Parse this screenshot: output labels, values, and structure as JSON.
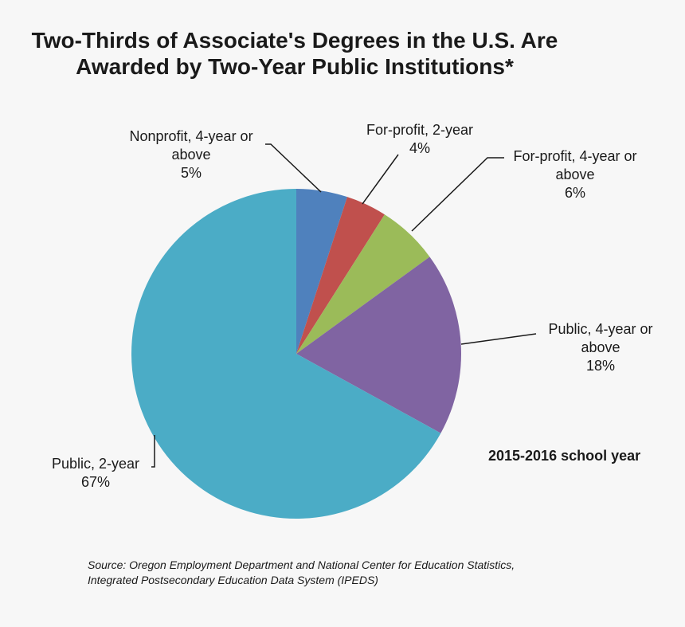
{
  "title_lines": [
    "Two-Thirds of Associate's Degrees in the U.S. Are",
    "Awarded by Two-Year Public Institutions*"
  ],
  "note": "2015-2016 school year",
  "source_lines": [
    "Source: Oregon Employment Department and National Center for Education Statistics,",
    "Integrated Postsecondary Education Data System (IPEDS)"
  ],
  "chart_data": {
    "type": "pie",
    "title": "Two-Thirds of Associate's Degrees in the U.S. Are Awarded by Two-Year Public Institutions*",
    "slices": [
      {
        "label": "Nonprofit, 4-year or above",
        "label_lines": [
          "Nonprofit, 4-year or",
          "above"
        ],
        "value": 5,
        "pct_label": "5%",
        "color": "#4f81bd"
      },
      {
        "label": "For-profit, 2-year",
        "label_lines": [
          "For-profit, 2-year"
        ],
        "value": 4,
        "pct_label": "4%",
        "color": "#c0504d"
      },
      {
        "label": "For-profit, 4-year or above",
        "label_lines": [
          "For-profit, 4-year or",
          "above"
        ],
        "value": 6,
        "pct_label": "6%",
        "color": "#9bbb59"
      },
      {
        "label": "Public, 4-year or above",
        "label_lines": [
          "Public, 4-year or",
          "above"
        ],
        "value": 18,
        "pct_label": "18%",
        "color": "#8064a2"
      },
      {
        "label": "Public, 2-year",
        "label_lines": [
          "Public, 2-year"
        ],
        "value": 67,
        "pct_label": "67%",
        "color": "#4bacc6"
      }
    ],
    "start_angle": "12 o'clock",
    "direction": "clockwise",
    "legend": "none (data labels with leader lines)"
  }
}
